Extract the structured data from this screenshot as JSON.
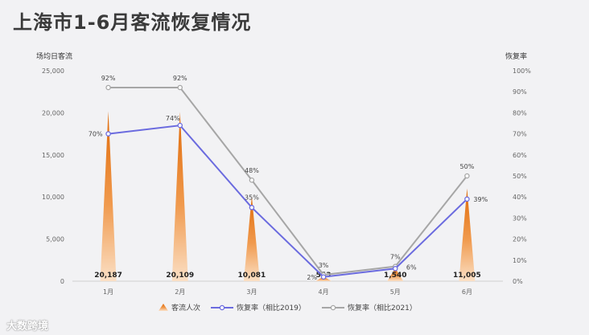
{
  "title": "上海市1-6月客流恢复情况",
  "watermark": "大数跨境",
  "chart_data": {
    "type": "bar+line",
    "categories": [
      "1月",
      "2月",
      "3月",
      "4月",
      "5月",
      "6月"
    ],
    "left_axis": {
      "label": "场均日客流",
      "min": 0,
      "max": 25000,
      "ticks": [
        "0",
        "5,000",
        "10,000",
        "15,000",
        "20,000",
        "25,000"
      ]
    },
    "right_axis": {
      "label": "恢复率",
      "min": 0,
      "max": 100,
      "ticks": [
        "0%",
        "10%",
        "20%",
        "30%",
        "40%",
        "50%",
        "60%",
        "70%",
        "80%",
        "90%",
        "100%"
      ]
    },
    "series": [
      {
        "name": "客流人次",
        "kind": "spike",
        "axis": "left",
        "color": "#e8720c",
        "values": [
          20187,
          20109,
          10081,
          553,
          1540,
          11005
        ],
        "labels": [
          "20,187",
          "20,109",
          "10,081",
          "553",
          "1,540",
          "11,005"
        ]
      },
      {
        "name": "恢复率（相比2019）",
        "kind": "line",
        "axis": "right",
        "color": "#6b6bdf",
        "values": [
          70,
          74,
          35,
          2,
          6,
          39
        ],
        "labels": [
          "70%",
          "74%",
          "35%",
          "2%",
          "6%",
          "39%"
        ]
      },
      {
        "name": "恢复率（相比2021）",
        "kind": "line",
        "axis": "right",
        "color": "#a6a6a6",
        "values": [
          92,
          92,
          48,
          3,
          7,
          50
        ],
        "labels": [
          "92%",
          "92%",
          "48%",
          "3%",
          "7%",
          "50%"
        ]
      }
    ],
    "legend_position": "bottom"
  }
}
